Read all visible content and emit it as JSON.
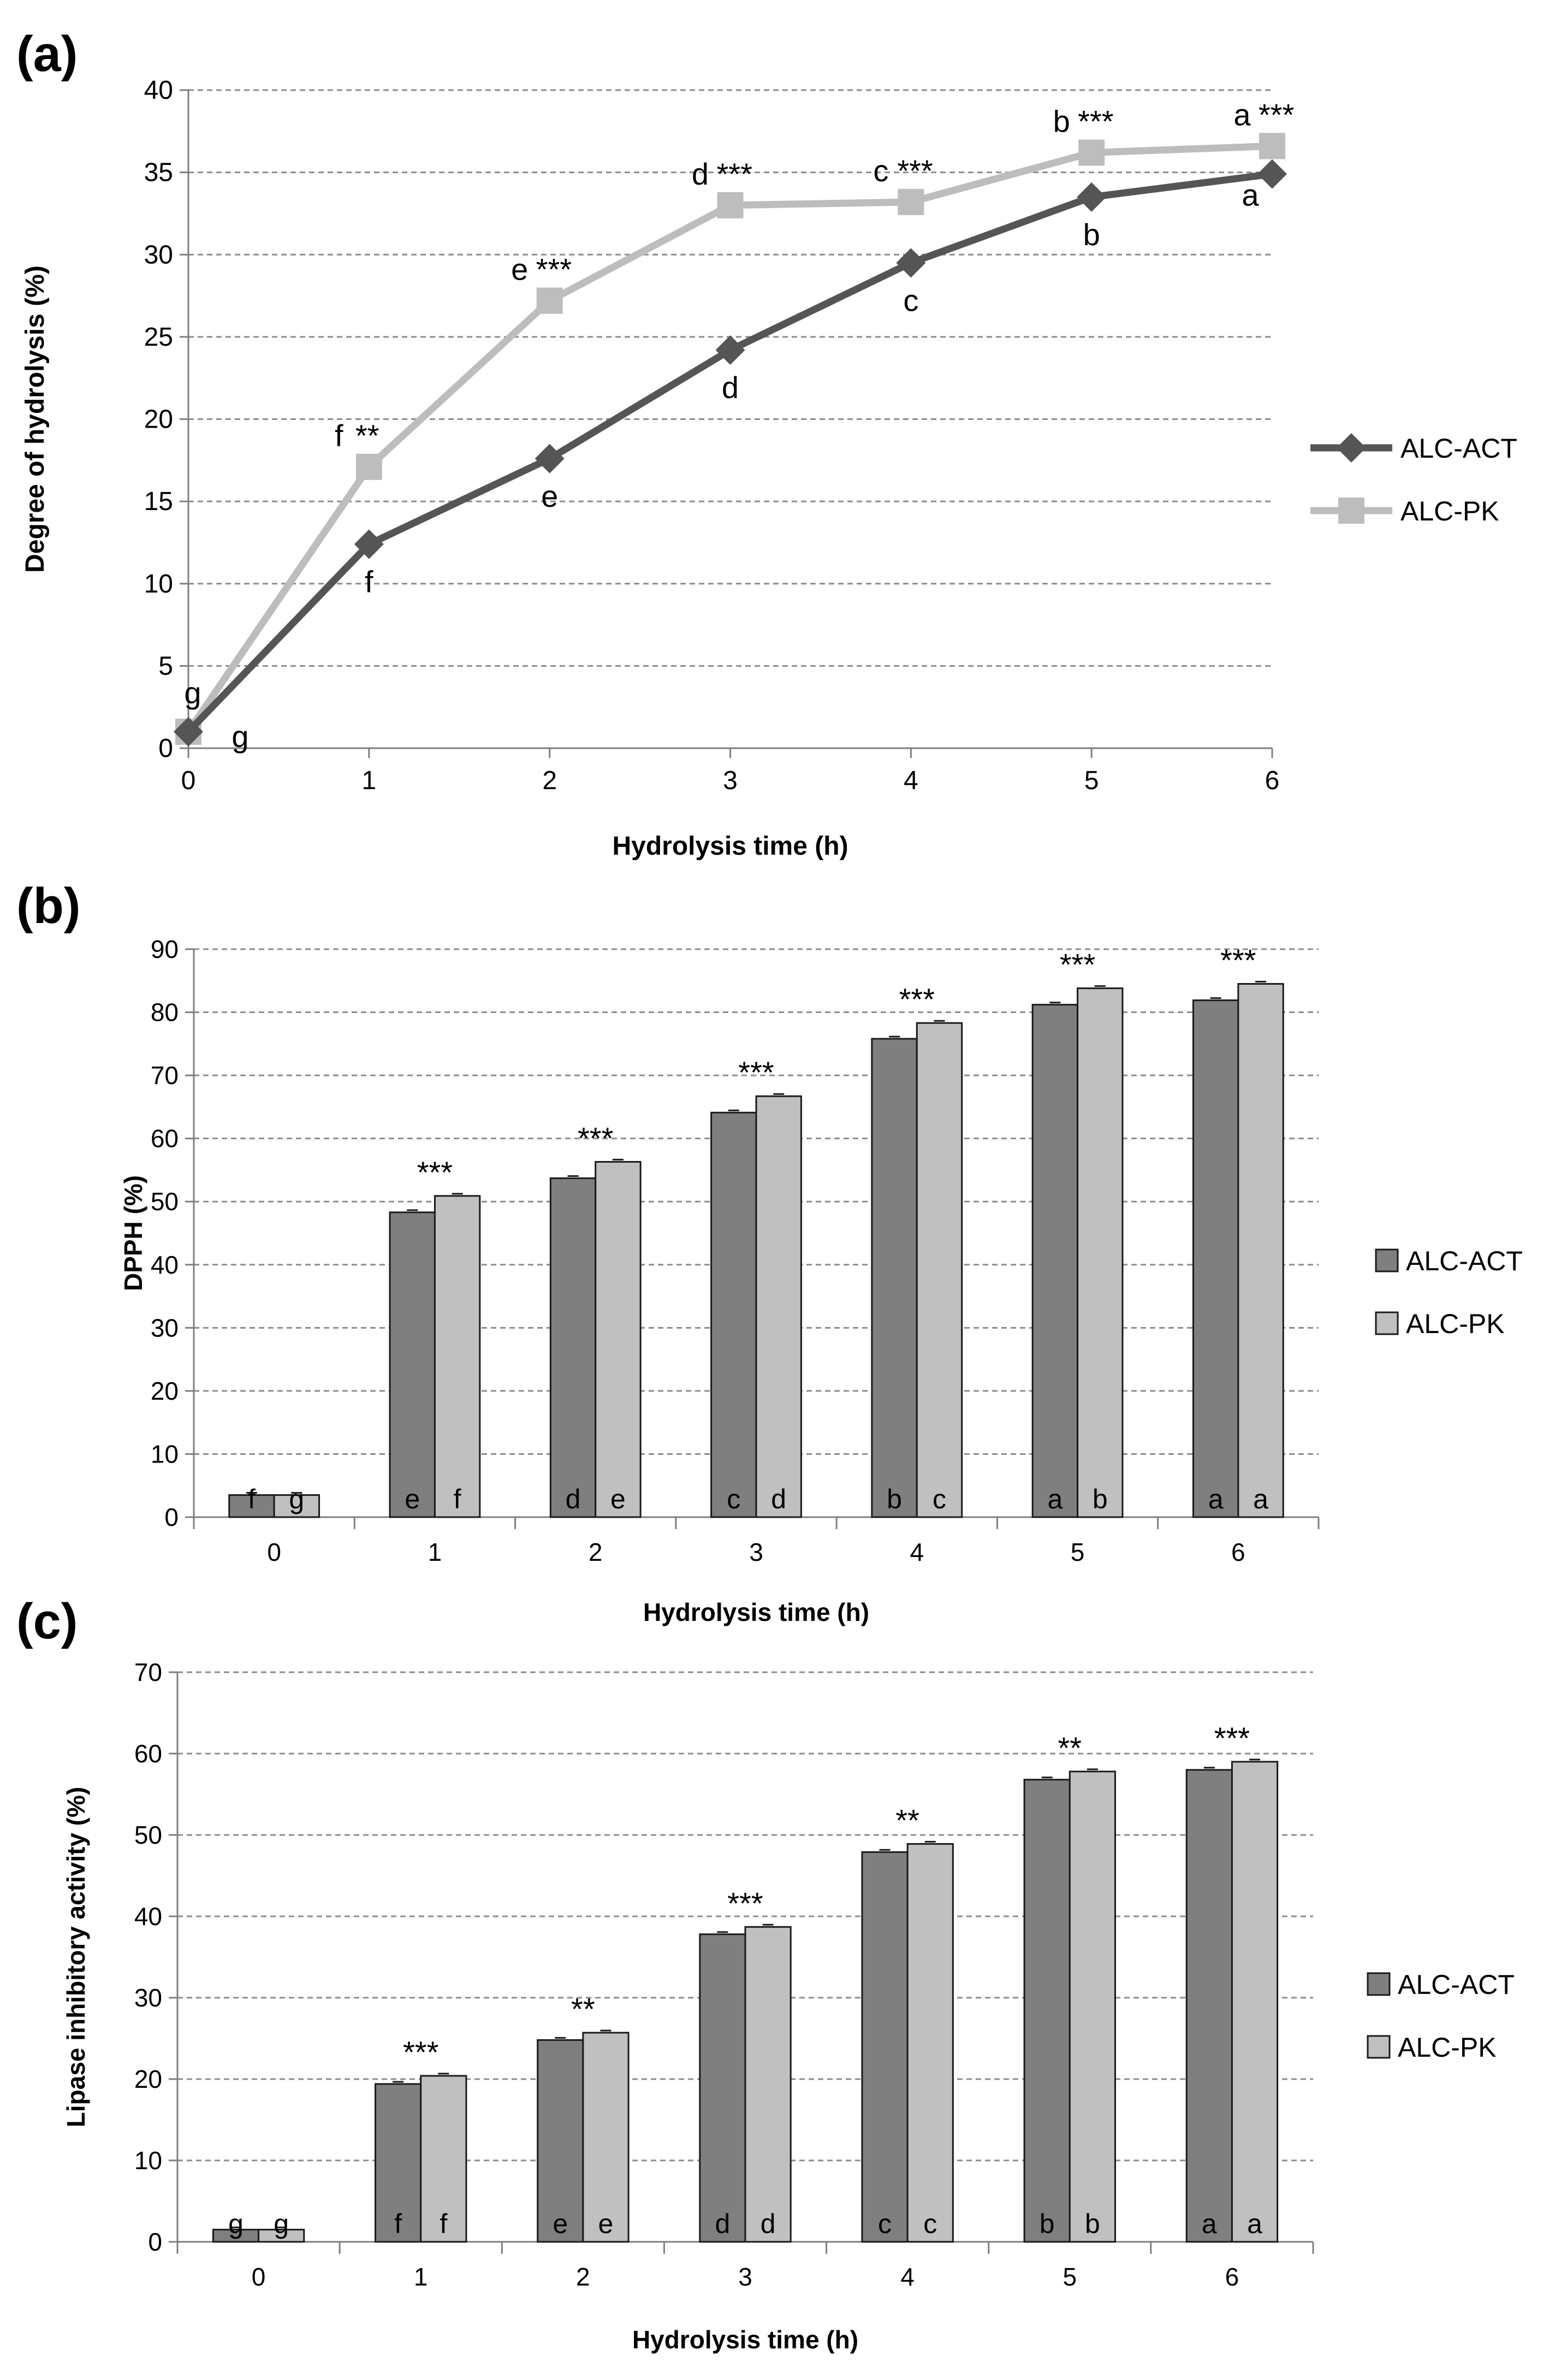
{
  "figure": {
    "panels": [
      {
        "label": "(a)"
      },
      {
        "label": "(b)"
      },
      {
        "label": "(c)"
      }
    ]
  },
  "chart_data": [
    {
      "type": "line",
      "panel_label": "(a)",
      "xlabel": "Hydrolysis time (h)",
      "ylabel": "Degree of hydrolysis (%)",
      "x": [
        0,
        1,
        2,
        3,
        4,
        5,
        6
      ],
      "xlim": [
        0,
        6
      ],
      "ylim": [
        0,
        40
      ],
      "yticks": [
        0,
        5,
        10,
        15,
        20,
        25,
        30,
        35,
        40
      ],
      "grid": true,
      "legend_position": "right",
      "series": [
        {
          "name": "ALC-ACT",
          "color": "#555555",
          "marker": "diamond",
          "values": [
            1,
            12.4,
            17.6,
            24.2,
            29.5,
            33.5,
            34.9
          ],
          "letters": [
            "g",
            "f",
            "e",
            "d",
            "c",
            "b",
            "a"
          ],
          "significance": [
            "",
            "",
            "",
            "",
            "",
            "",
            ""
          ]
        },
        {
          "name": "ALC-PK",
          "color": "#bdbdbd",
          "marker": "square",
          "values": [
            1,
            17.1,
            27.2,
            33.0,
            33.2,
            36.2,
            36.6
          ],
          "letters": [
            "g",
            "f",
            "e",
            "d",
            "c",
            "b",
            "a"
          ],
          "significance": [
            "",
            "**",
            "***",
            "***",
            "***",
            "***",
            "***"
          ]
        }
      ]
    },
    {
      "type": "bar",
      "panel_label": "(b)",
      "xlabel": "Hydrolysis time (h)",
      "ylabel": "DPPH (%)",
      "categories": [
        "0",
        "1",
        "2",
        "3",
        "4",
        "5",
        "6"
      ],
      "ylim": [
        0,
        90
      ],
      "yticks": [
        0,
        10,
        20,
        30,
        40,
        50,
        60,
        70,
        80,
        90
      ],
      "grid": true,
      "legend_position": "right",
      "series": [
        {
          "name": "ALC-ACT",
          "color": "#7f7f7f",
          "values": [
            3.5,
            48.3,
            53.7,
            64.1,
            75.8,
            81.2,
            81.9
          ],
          "letters": [
            "f",
            "e",
            "d",
            "c",
            "b",
            "a",
            "a"
          ]
        },
        {
          "name": "ALC-PK",
          "color": "#c0c0c0",
          "values": [
            3.5,
            50.9,
            56.3,
            66.7,
            78.3,
            83.8,
            84.5
          ],
          "letters": [
            "g",
            "f",
            "e",
            "d",
            "c",
            "b",
            "a"
          ]
        }
      ],
      "significance": [
        "",
        "***",
        "***",
        "***",
        "***",
        "***",
        "***"
      ]
    },
    {
      "type": "bar",
      "panel_label": "(c)",
      "xlabel": "Hydrolysis time (h)",
      "ylabel": "Lipase inhibitory activity (%)",
      "categories": [
        "0",
        "1",
        "2",
        "3",
        "4",
        "5",
        "6"
      ],
      "ylim": [
        0,
        70
      ],
      "yticks": [
        0,
        10,
        20,
        30,
        40,
        50,
        60,
        70
      ],
      "grid": true,
      "legend_position": "right",
      "series": [
        {
          "name": "ALC-ACT",
          "color": "#7f7f7f",
          "values": [
            1.5,
            19.4,
            24.8,
            37.8,
            47.9,
            56.8,
            58.0
          ],
          "letters": [
            "g",
            "f",
            "e",
            "d",
            "c",
            "b",
            "a"
          ]
        },
        {
          "name": "ALC-PK",
          "color": "#c0c0c0",
          "values": [
            1.5,
            20.4,
            25.7,
            38.7,
            48.9,
            57.8,
            59.0
          ],
          "letters": [
            "g",
            "f",
            "e",
            "d",
            "c",
            "b",
            "a"
          ]
        }
      ],
      "significance": [
        "",
        "***",
        "**",
        "***",
        "**",
        "**",
        "***"
      ]
    }
  ]
}
